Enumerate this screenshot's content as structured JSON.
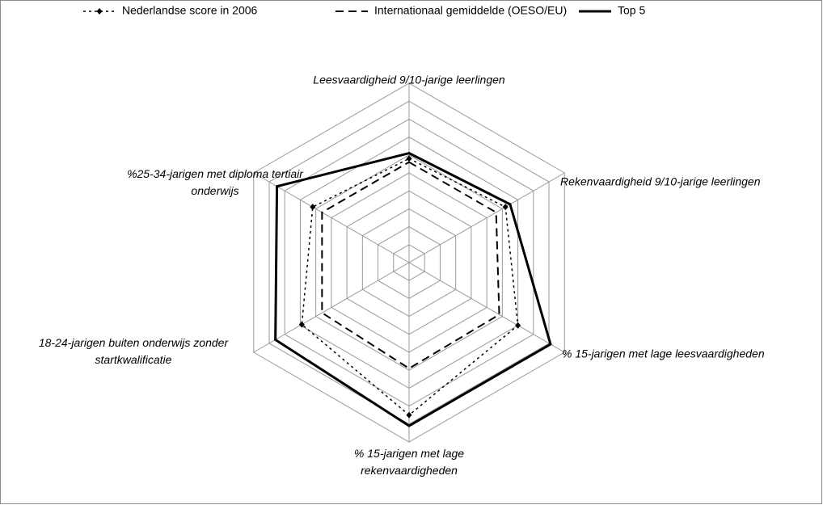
{
  "chart_data": {
    "type": "radar",
    "categories": [
      "Leesvaardigheid 9/10-jarige leerlingen",
      "Rekenvaardigheid 9/10-jarige leerlingen",
      "% 15-jarigen met lage leesvaardigheden",
      "% 15-jarigen met lage rekenvaardigheden",
      "18-24-jarigen buiten onderwijs zonder startkwalificatie",
      "%25-34-jarigen met diploma tertiair onderwijs"
    ],
    "series": [
      {
        "name": "Nederlandse score in 2006",
        "color": "#000000",
        "style": "dotted-diamond",
        "values": [
          5.8,
          6.2,
          7.0,
          8.5,
          6.9,
          6.2
        ]
      },
      {
        "name": "Internationaal gemiddelde (OESO/EU)",
        "color": "#000000",
        "style": "dashed",
        "values": [
          5.6,
          5.6,
          5.8,
          5.9,
          5.6,
          5.6
        ]
      },
      {
        "name": "Top 5",
        "color": "#000000",
        "style": "solid",
        "values": [
          6.1,
          6.5,
          9.1,
          9.1,
          8.6,
          8.5
        ]
      }
    ],
    "rlim": [
      0,
      10
    ],
    "rticks": [
      1,
      2,
      3,
      4,
      5,
      6,
      7,
      8,
      9,
      10
    ],
    "grid": true,
    "legend": "top"
  }
}
